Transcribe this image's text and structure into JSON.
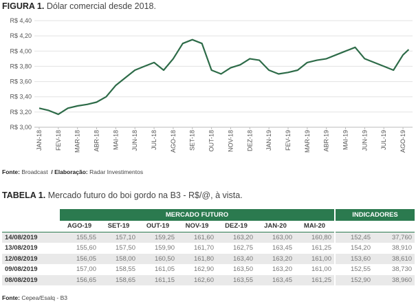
{
  "figure": {
    "label": "FIGURA 1.",
    "title": "Dólar comercial desde 2018."
  },
  "chart_data": {
    "type": "line",
    "color": "#2d6b48",
    "x": [
      0,
      0.5,
      1,
      1.5,
      2,
      2.5,
      3,
      3.5,
      4,
      4.5,
      5,
      5.5,
      6,
      6.5,
      7,
      7.5,
      8,
      8.5,
      9,
      9.5,
      10,
      10.5,
      11,
      11.5,
      12,
      12.5,
      13,
      13.5,
      14,
      14.5,
      15,
      15.5,
      16,
      16.5,
      17,
      17.5,
      18,
      18.5,
      19,
      19.3
    ],
    "values": [
      3.25,
      3.22,
      3.17,
      3.25,
      3.28,
      3.3,
      3.33,
      3.4,
      3.55,
      3.65,
      3.75,
      3.8,
      3.85,
      3.75,
      3.9,
      4.1,
      4.15,
      4.1,
      3.75,
      3.7,
      3.78,
      3.82,
      3.9,
      3.88,
      3.75,
      3.7,
      3.72,
      3.75,
      3.85,
      3.88,
      3.9,
      3.95,
      4.0,
      4.05,
      3.9,
      3.85,
      3.8,
      3.75,
      3.95,
      4.02
    ],
    "xlim": [
      -0.25,
      19.5
    ],
    "xticks": [
      {
        "value": 0,
        "label": "JAN-18"
      },
      {
        "value": 1,
        "label": "FEV-18"
      },
      {
        "value": 2,
        "label": "MAR-18"
      },
      {
        "value": 3,
        "label": "ABR-18"
      },
      {
        "value": 4,
        "label": "MAI-18"
      },
      {
        "value": 5,
        "label": "JUN-18"
      },
      {
        "value": 6,
        "label": "JUL-18"
      },
      {
        "value": 7,
        "label": "AGO-18"
      },
      {
        "value": 8,
        "label": "SET-18"
      },
      {
        "value": 9,
        "label": "OUT-18"
      },
      {
        "value": 10,
        "label": "NOV-18"
      },
      {
        "value": 11,
        "label": "DEZ-18"
      },
      {
        "value": 12,
        "label": "JAN-19"
      },
      {
        "value": 13,
        "label": "FEV-19"
      },
      {
        "value": 14,
        "label": "MAR-19"
      },
      {
        "value": 15,
        "label": "ABR-19"
      },
      {
        "value": 16,
        "label": "MAI-19"
      },
      {
        "value": 17,
        "label": "JUN-19"
      },
      {
        "value": 18,
        "label": "JUL-19"
      },
      {
        "value": 19,
        "label": "AGO-19"
      }
    ],
    "ylim": [
      3.0,
      4.4
    ],
    "yticks": [
      {
        "value": 3.0,
        "label": "R$ 3,00"
      },
      {
        "value": 3.2,
        "label": "R$ 3,20"
      },
      {
        "value": 3.4,
        "label": "R$ 3,40"
      },
      {
        "value": 3.6,
        "label": "R$ 3,60"
      },
      {
        "value": 3.8,
        "label": "R$ 3,80"
      },
      {
        "value": 4.0,
        "label": "R$ 4,00"
      },
      {
        "value": 4.2,
        "label": "R$ 4,20"
      },
      {
        "value": 4.4,
        "label": "R$ 4,40"
      }
    ],
    "grid": true
  },
  "figure_source": {
    "label1": "Fonte:",
    "text1": "Broadcast",
    "label2": "/ Elaboração:",
    "text2": "Radar Investimentos"
  },
  "table_title": {
    "label": "TABELA 1.",
    "title": "Mercado futuro do boi gordo na B3 - R$/@, à vista."
  },
  "table": {
    "groups": [
      "MERCADO FUTURO",
      "INDICADORES"
    ],
    "columns": [
      "AGO-19",
      "SET-19",
      "OUT-19",
      "NOV-19",
      "DEZ-19",
      "JAN-20",
      "MAI-20"
    ],
    "rows": [
      [
        "14/08/2019",
        "155,55",
        "157,10",
        "159,25",
        "161,60",
        "163,20",
        "163,00",
        "160,80",
        "152,45",
        "37,760"
      ],
      [
        "13/08/2019",
        "155,60",
        "157,50",
        "159,90",
        "161,70",
        "162,75",
        "163,45",
        "161,25",
        "154,20",
        "38,910"
      ],
      [
        "12/08/2019",
        "156,05",
        "158,00",
        "160,50",
        "161,80",
        "163,40",
        "163,20",
        "161,00",
        "153,60",
        "38,610"
      ],
      [
        "09/08/2019",
        "157,00",
        "158,55",
        "161,05",
        "162,90",
        "163,50",
        "163,20",
        "161,00",
        "152,55",
        "38,730"
      ],
      [
        "08/08/2019",
        "156,65",
        "158,65",
        "161,15",
        "162,60",
        "163,55",
        "163,45",
        "161,25",
        "152,90",
        "38,960"
      ]
    ]
  },
  "table_source": {
    "label": "Fonte:",
    "text": "Cepea/Esalq - B3"
  }
}
